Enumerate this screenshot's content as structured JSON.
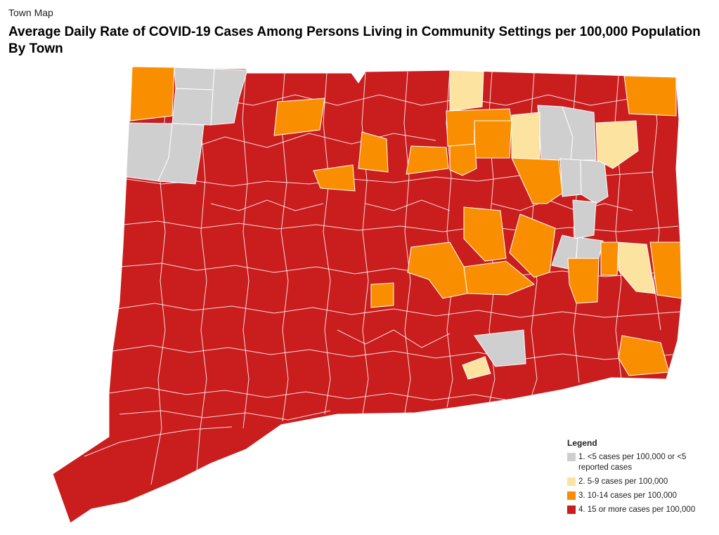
{
  "header": {
    "subtitle": "Town Map",
    "title": "Average Daily Rate of COVID-19 Cases Among Persons Living in Community Settings per 100,000 Population By Town"
  },
  "colors": {
    "gray": "#cfcfcf",
    "yellow": "#fde3a0",
    "orange": "#f98f00",
    "red": "#c91d1e",
    "border": "#ffffff"
  },
  "legend": {
    "title": "Legend",
    "items": [
      {
        "label": "1. <5 cases per 100,000 or <5 reported cases",
        "color": "#cfcfcf"
      },
      {
        "label": "2. 5-9 cases per 100,000",
        "color": "#fde3a0"
      },
      {
        "label": "3. 10-14 cases per 100,000",
        "color": "#f98f00"
      },
      {
        "label": "4. 15 or more cases per 100,000",
        "color": "#c91d1e"
      }
    ]
  }
}
